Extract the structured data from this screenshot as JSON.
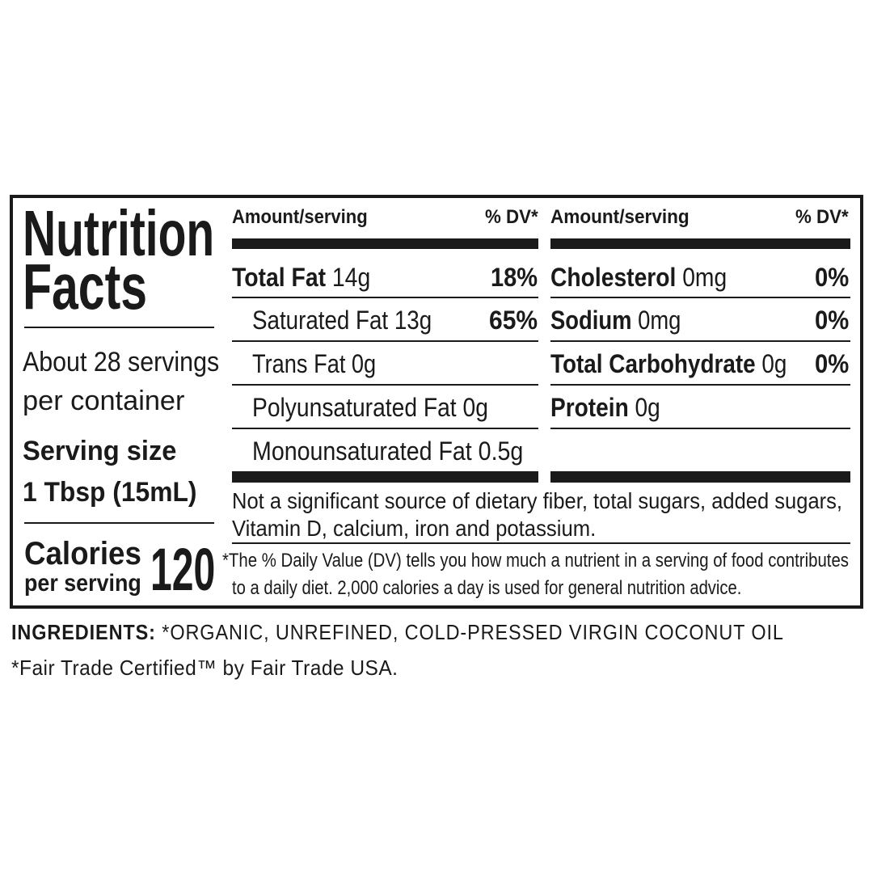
{
  "title_line1": "Nutrition",
  "title_line2": "Facts",
  "servings": {
    "line1": "About 28 servings",
    "line2": "per container"
  },
  "serving_size": {
    "label": "Serving size",
    "value": "1 Tbsp (15mL)"
  },
  "calories": {
    "label_line1": "Calories",
    "label_line2": "per serving",
    "value": "120"
  },
  "left_table": {
    "header": {
      "amount": "Amount/serving",
      "dv": "% DV*"
    },
    "rows": [
      {
        "name": "Total Fat",
        "amount": " 14g",
        "dv": "18%",
        "bold": true
      },
      {
        "name": "Saturated Fat 13g",
        "dv": "65%"
      },
      {
        "name": "Trans Fat 0g"
      },
      {
        "name": "Polyunsaturated Fat 0g"
      },
      {
        "name": "Monounsaturated Fat 0.5g"
      }
    ]
  },
  "right_table": {
    "header": {
      "amount": "Amount/serving",
      "dv": "% DV*"
    },
    "rows": [
      {
        "name": "Cholesterol",
        "amount": " 0mg",
        "dv": "0%"
      },
      {
        "name": "Sodium",
        "amount": " 0mg",
        "dv": "0%"
      },
      {
        "name": "Total Carbohydrate",
        "amount": " 0g",
        "dv": "0%"
      },
      {
        "name": "Protein",
        "amount": " 0g"
      }
    ]
  },
  "note": {
    "line1": "Not a significant source of dietary fiber, total sugars, added sugars,",
    "line2": "Vitamin D, calcium, iron and potassium."
  },
  "footnote": {
    "line1": "*The % Daily Value (DV) tells you how much a nutrient in a serving of food contributes",
    "line2": "to a daily diet. 2,000 calories a day is used for general nutrition advice."
  },
  "ingredients": {
    "label": "INGREDIENTS:",
    "text": " *ORGANIC, UNREFINED, COLD-PRESSED VIRGIN COCONUT OIL"
  },
  "fair_trade": "*Fair Trade Certified™ by Fair Trade USA."
}
